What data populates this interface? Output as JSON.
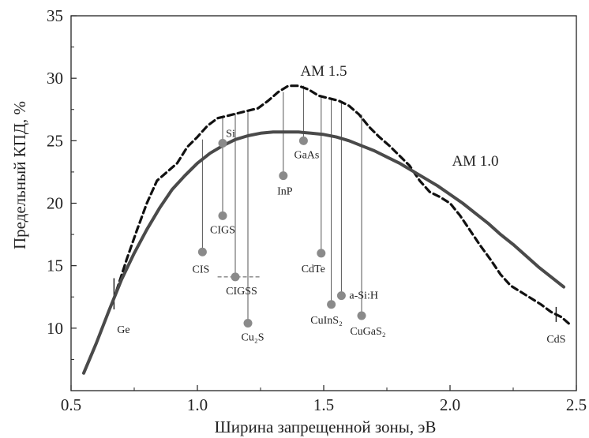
{
  "chart_data": {
    "type": "line",
    "xlabel": "Ширина запрещенной зоны, эВ",
    "ylabel": "Предельный КПД, %",
    "xlim": [
      0.5,
      2.5
    ],
    "ylim": [
      5,
      35
    ],
    "xticks": [
      "0.5",
      "1.0",
      "1.5",
      "2.0",
      "2.5"
    ],
    "yticks": [
      "10",
      "15",
      "20",
      "25",
      "30",
      "35"
    ],
    "grid": false,
    "series": [
      {
        "name": "AM 1.5",
        "style": "dashed",
        "x": [
          0.68,
          0.72,
          0.76,
          0.8,
          0.84,
          0.88,
          0.92,
          0.96,
          1.0,
          1.04,
          1.08,
          1.12,
          1.16,
          1.2,
          1.24,
          1.28,
          1.32,
          1.36,
          1.4,
          1.44,
          1.48,
          1.52,
          1.56,
          1.6,
          1.64,
          1.68,
          1.72,
          1.76,
          1.8,
          1.84,
          1.88,
          1.92,
          1.96,
          2.0,
          2.04,
          2.08,
          2.12,
          2.16,
          2.2,
          2.24,
          2.28,
          2.32,
          2.36,
          2.4,
          2.44,
          2.48
        ],
        "y": [
          13.0,
          15.5,
          17.8,
          20.0,
          21.8,
          22.5,
          23.2,
          24.5,
          25.3,
          26.2,
          26.8,
          27.0,
          27.2,
          27.4,
          27.6,
          28.2,
          28.9,
          29.4,
          29.4,
          29.1,
          28.6,
          28.4,
          28.2,
          27.8,
          27.1,
          26.1,
          25.3,
          24.6,
          23.8,
          23.0,
          21.8,
          20.9,
          20.5,
          20.0,
          19.0,
          17.8,
          16.6,
          15.5,
          14.3,
          13.4,
          12.9,
          12.4,
          11.9,
          11.3,
          10.9,
          10.2
        ]
      },
      {
        "name": "AM 1.0",
        "style": "solid",
        "x": [
          0.55,
          0.6,
          0.65,
          0.7,
          0.75,
          0.8,
          0.85,
          0.9,
          0.95,
          1.0,
          1.05,
          1.1,
          1.15,
          1.2,
          1.25,
          1.3,
          1.35,
          1.4,
          1.45,
          1.5,
          1.55,
          1.6,
          1.65,
          1.7,
          1.75,
          1.8,
          1.85,
          1.9,
          1.95,
          2.0,
          2.05,
          2.1,
          2.15,
          2.2,
          2.25,
          2.3,
          2.35,
          2.4,
          2.45
        ],
        "y": [
          6.4,
          8.8,
          11.4,
          13.9,
          16.0,
          17.9,
          19.6,
          21.1,
          22.2,
          23.2,
          24.0,
          24.6,
          25.1,
          25.4,
          25.6,
          25.7,
          25.7,
          25.7,
          25.6,
          25.5,
          25.3,
          25.0,
          24.6,
          24.2,
          23.7,
          23.2,
          22.6,
          22.0,
          21.4,
          20.7,
          20.0,
          19.2,
          18.4,
          17.5,
          16.7,
          15.8,
          14.9,
          14.1,
          13.3
        ]
      }
    ],
    "materials": [
      {
        "name": "Ge",
        "x": 0.67,
        "point": null,
        "line_top": 14.0,
        "line_bottom": 11.5
      },
      {
        "name": "CIS",
        "x": 1.02,
        "point": 16.1,
        "line_top": 25.1,
        "line_bottom": 16.1
      },
      {
        "name": "Si",
        "x": 1.1,
        "point": 24.8,
        "line_top": 26.9,
        "line_bottom": 24.8
      },
      {
        "name": "CIGS",
        "x": 1.1,
        "point": 19.0,
        "line_top": 24.8,
        "line_bottom": 19.0
      },
      {
        "name": "CIGSS",
        "x": 1.15,
        "point": 14.1,
        "line_top": 27.2,
        "line_bottom": 14.1
      },
      {
        "name": "Cu₂S",
        "x": 1.2,
        "point": 10.4,
        "line_top": 27.4,
        "line_bottom": 10.4
      },
      {
        "name": "InP",
        "x": 1.34,
        "point": 22.2,
        "line_top": 28.9,
        "line_bottom": 22.2
      },
      {
        "name": "GaAs",
        "x": 1.42,
        "point": 25.0,
        "line_top": 29.4,
        "line_bottom": 25.0
      },
      {
        "name": "CdTe",
        "x": 1.49,
        "point": 16.0,
        "line_top": 28.6,
        "line_bottom": 16.0
      },
      {
        "name": "CuInS₂",
        "x": 1.53,
        "point": 11.9,
        "line_top": 28.4,
        "line_bottom": 11.9
      },
      {
        "name": "a-Si:H",
        "x": 1.57,
        "point": 12.6,
        "line_top": 28.2,
        "line_bottom": 12.6
      },
      {
        "name": "CuGaS₂",
        "x": 1.65,
        "point": 11.0,
        "line_top": 27.1,
        "line_bottom": 11.0
      },
      {
        "name": "CdS",
        "x": 2.42,
        "point": null,
        "line_top": 11.7,
        "line_bottom": 10.5
      }
    ],
    "colors": {
      "curve": "#4a4a4a",
      "dashed": "#111111",
      "points": "#8a8a8a",
      "lines": "#555555"
    }
  }
}
